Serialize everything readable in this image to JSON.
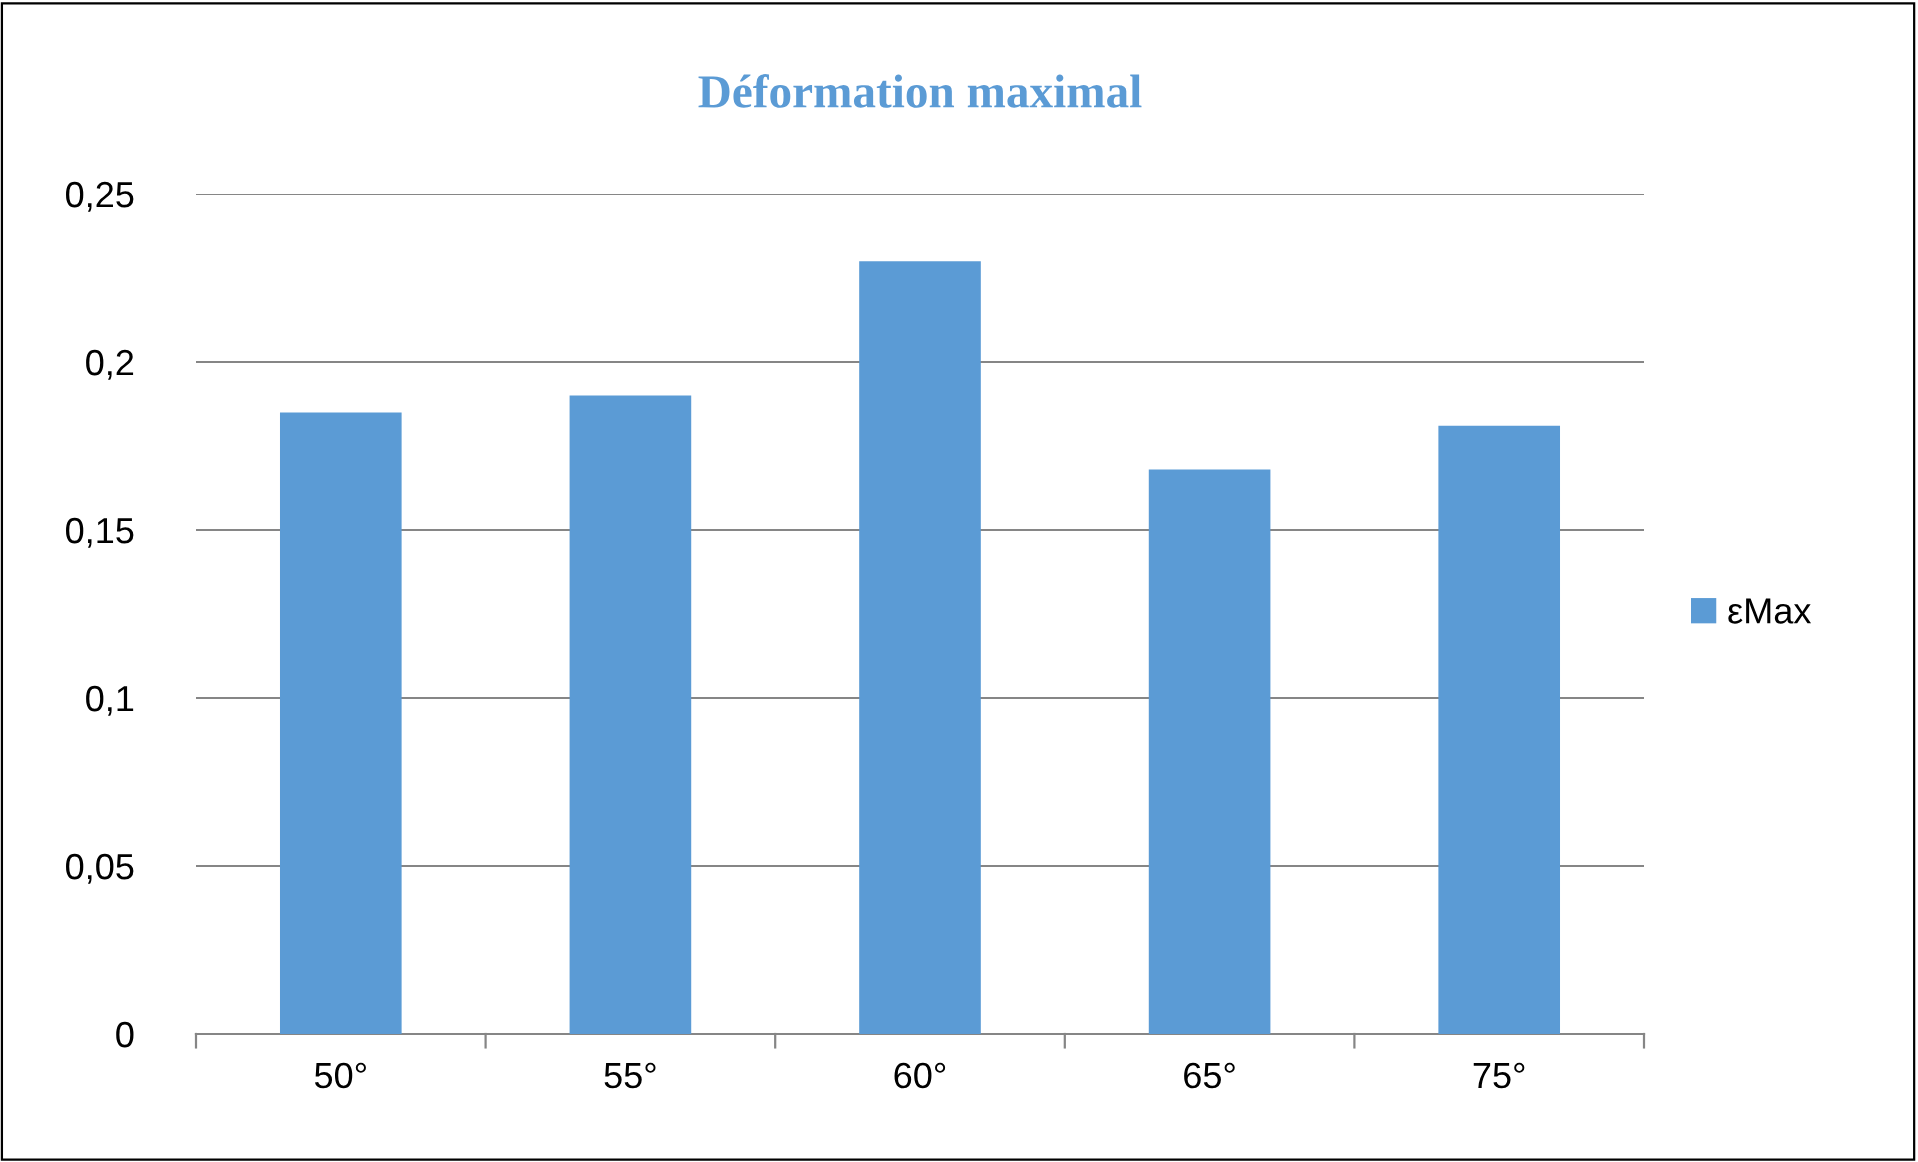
{
  "chart_data": {
    "type": "bar",
    "title": "Déformation maximal",
    "categories": [
      "50°",
      "55°",
      "60°",
      "65°",
      "75°"
    ],
    "series": [
      {
        "name": "εMax",
        "color": "#5b9bd5",
        "values": [
          0.185,
          0.19,
          0.23,
          0.168,
          0.181
        ]
      }
    ],
    "ylim": [
      0,
      0.25
    ],
    "yticks": [
      {
        "value": 0,
        "label": "0"
      },
      {
        "value": 0.05,
        "label": "0,05"
      },
      {
        "value": 0.1,
        "label": "0,1"
      },
      {
        "value": 0.15,
        "label": "0,15"
      },
      {
        "value": 0.2,
        "label": "0,2"
      },
      {
        "value": 0.25,
        "label": "0,25"
      }
    ],
    "grid": "y",
    "legend": "right"
  }
}
